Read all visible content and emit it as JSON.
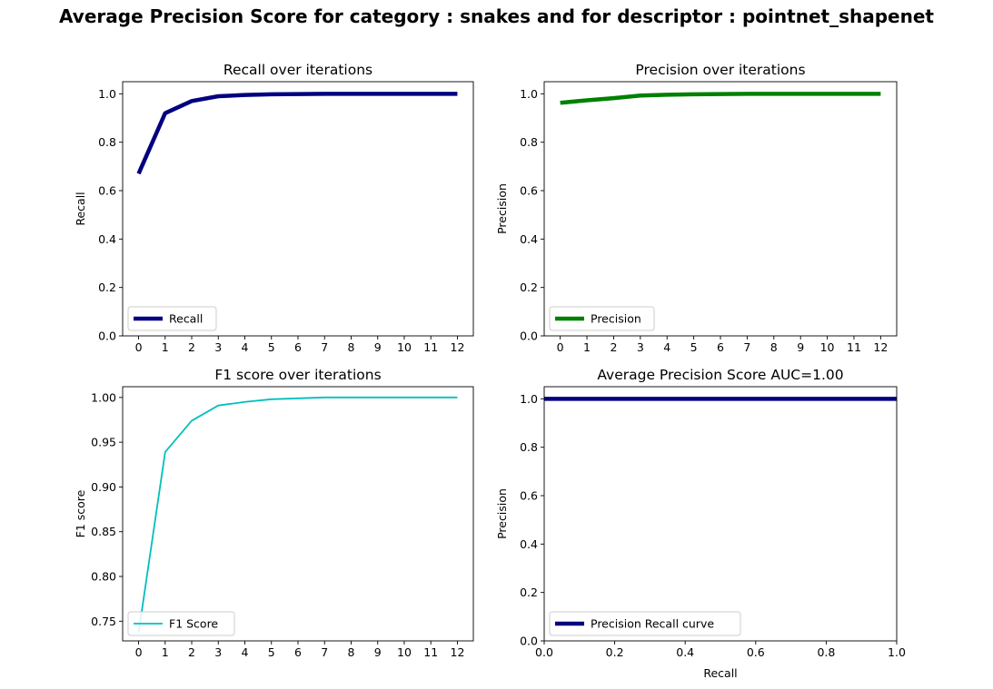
{
  "figure": {
    "title": "Average Precision Score for category : snakes and for descriptor : pointnet_shapenet"
  },
  "chart_data": [
    {
      "type": "line",
      "title": "Recall over iterations",
      "xlabel": "",
      "ylabel": "Recall",
      "x": [
        0,
        1,
        2,
        3,
        4,
        5,
        6,
        7,
        8,
        9,
        10,
        11,
        12
      ],
      "xticks": [
        "0",
        "1",
        "2",
        "3",
        "4",
        "5",
        "6",
        "7",
        "8",
        "9",
        "10",
        "11",
        "12"
      ],
      "yticks": [
        "0.0",
        "0.2",
        "0.4",
        "0.6",
        "0.8",
        "1.0"
      ],
      "xlim": [
        -0.6,
        12.6
      ],
      "ylim": [
        0.0,
        1.05
      ],
      "legend_position": "lower left",
      "series": [
        {
          "name": "Recall",
          "color": "#000080",
          "values": [
            0.67,
            0.92,
            0.97,
            0.99,
            0.995,
            0.998,
            0.999,
            1.0,
            1.0,
            1.0,
            1.0,
            1.0,
            1.0
          ]
        }
      ]
    },
    {
      "type": "line",
      "title": "Precision over iterations",
      "xlabel": "",
      "ylabel": "Precision",
      "x": [
        0,
        1,
        2,
        3,
        4,
        5,
        6,
        7,
        8,
        9,
        10,
        11,
        12
      ],
      "xticks": [
        "0",
        "1",
        "2",
        "3",
        "4",
        "5",
        "6",
        "7",
        "8",
        "9",
        "10",
        "11",
        "12"
      ],
      "yticks": [
        "0.0",
        "0.2",
        "0.4",
        "0.6",
        "0.8",
        "1.0"
      ],
      "xlim": [
        -0.6,
        12.6
      ],
      "ylim": [
        0.0,
        1.05
      ],
      "legend_position": "lower left",
      "series": [
        {
          "name": "Precision",
          "color": "#008000",
          "values": [
            0.963,
            0.973,
            0.982,
            0.993,
            0.996,
            0.998,
            0.999,
            1.0,
            1.0,
            1.0,
            1.0,
            1.0,
            1.0
          ]
        }
      ]
    },
    {
      "type": "line",
      "title": "F1 score over iterations",
      "xlabel": "",
      "ylabel": "F1 score",
      "x": [
        0,
        1,
        2,
        3,
        4,
        5,
        6,
        7,
        8,
        9,
        10,
        11,
        12
      ],
      "xticks": [
        "0",
        "1",
        "2",
        "3",
        "4",
        "5",
        "6",
        "7",
        "8",
        "9",
        "10",
        "11",
        "12"
      ],
      "yticks": [
        "0.75",
        "0.80",
        "0.85",
        "0.90",
        "0.95",
        "1.00"
      ],
      "xlim": [
        -0.6,
        12.6
      ],
      "ylim": [
        0.728,
        1.012
      ],
      "legend_position": "lower left",
      "series": [
        {
          "name": "F1 Score",
          "color": "#00bfbf",
          "values": [
            0.737,
            0.939,
            0.974,
            0.991,
            0.995,
            0.998,
            0.999,
            1.0,
            1.0,
            1.0,
            1.0,
            1.0,
            1.0
          ]
        }
      ]
    },
    {
      "type": "line",
      "title": "Average Precision Score AUC=1.00",
      "xlabel": "Recall",
      "ylabel": "Precision",
      "x": [
        0.0,
        1.0
      ],
      "xticks": [
        "0.0",
        "0.2",
        "0.4",
        "0.6",
        "0.8",
        "1.0"
      ],
      "yticks": [
        "0.0",
        "0.2",
        "0.4",
        "0.6",
        "0.8",
        "1.0"
      ],
      "xlim": [
        0.0,
        1.0
      ],
      "ylim": [
        0.0,
        1.05
      ],
      "legend_position": "lower left",
      "series": [
        {
          "name": "Precision Recall curve",
          "color": "#000080",
          "values": [
            1.0,
            1.0
          ]
        }
      ]
    }
  ]
}
